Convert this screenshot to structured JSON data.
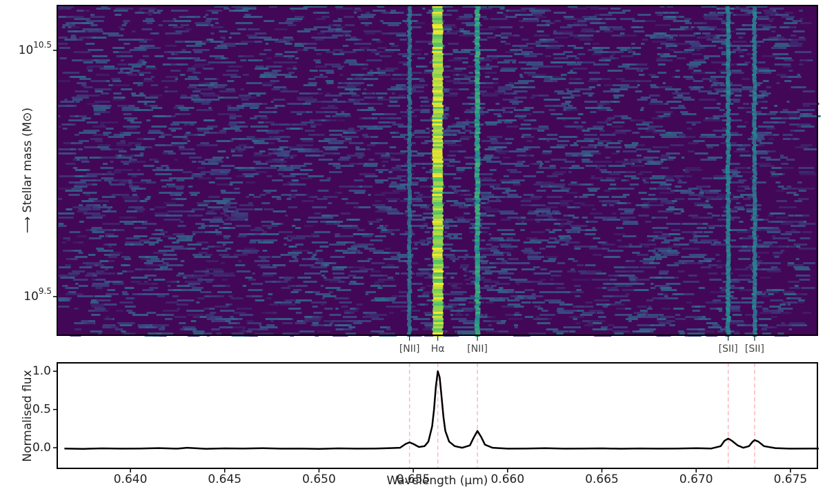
{
  "chart_data": [
    {
      "type": "heatmap",
      "y_label": "⟶ Stellar mass (M⊙)",
      "log_scale": true,
      "colormap": "viridis",
      "xlim": [
        0.63612,
        0.67643
      ],
      "ylim": [
        2203000000,
        48100000000
      ],
      "yticks": [
        {
          "value": 31622776602,
          "label": "10^10.5"
        },
        {
          "value": 3162277660,
          "label": "10^9.5"
        }
      ]
    },
    {
      "type": "line",
      "x_label": "Wavelength (μm)",
      "y_label": "Normalised flux",
      "color": "#000000",
      "xlim": [
        0.63612,
        0.67643
      ],
      "ylim": [
        -0.27,
        1.11
      ],
      "xticks": [
        {
          "value": 0.64,
          "label": "0.640"
        },
        {
          "value": 0.645,
          "label": "0.645"
        },
        {
          "value": 0.65,
          "label": "0.650"
        },
        {
          "value": 0.655,
          "label": "0.655"
        },
        {
          "value": 0.66,
          "label": "0.660"
        },
        {
          "value": 0.665,
          "label": "0.665"
        },
        {
          "value": 0.67,
          "label": "0.670"
        },
        {
          "value": 0.675,
          "label": "0.675"
        }
      ],
      "yticks": [
        {
          "value": 0,
          "label": "0.0"
        },
        0.5,
        {
          "value": 1,
          "label": "1.0"
        }
      ],
      "annotations": [
        {
          "text": "[NII]",
          "x": 0.6548
        },
        {
          "text": "Hα",
          "x": 0.6563
        },
        {
          "text": "[NII]",
          "x": 0.6584
        },
        {
          "text": "[SII]",
          "x": 0.6717
        },
        {
          "text": "[SII]",
          "x": 0.6731
        }
      ],
      "x": [
        0.6365,
        0.6375,
        0.6385,
        0.6395,
        0.6405,
        0.6415,
        0.6425,
        0.643,
        0.644,
        0.645,
        0.646,
        0.647,
        0.648,
        0.649,
        0.65,
        0.651,
        0.652,
        0.653,
        0.6538,
        0.6543,
        0.6546,
        0.6548,
        0.655,
        0.6553,
        0.6556,
        0.6558,
        0.656,
        0.6561,
        0.6562,
        0.6563,
        0.6564,
        0.6565,
        0.6566,
        0.6567,
        0.6569,
        0.6572,
        0.6576,
        0.658,
        0.6582,
        0.6584,
        0.6586,
        0.6588,
        0.6592,
        0.66,
        0.661,
        0.662,
        0.663,
        0.664,
        0.665,
        0.666,
        0.667,
        0.668,
        0.669,
        0.67,
        0.6708,
        0.6713,
        0.6715,
        0.6717,
        0.6719,
        0.6722,
        0.6725,
        0.6728,
        0.673,
        0.6731,
        0.6733,
        0.6736,
        0.6742,
        0.675,
        0.676,
        0.6765
      ],
      "values": [
        -0.01,
        -0.015,
        -0.008,
        -0.012,
        -0.01,
        -0.005,
        -0.012,
        0.0,
        -0.014,
        -0.008,
        -0.01,
        -0.006,
        -0.012,
        -0.01,
        -0.015,
        -0.008,
        -0.012,
        -0.01,
        -0.005,
        0.0,
        0.05,
        0.07,
        0.05,
        0.01,
        0.02,
        0.08,
        0.28,
        0.5,
        0.8,
        1.0,
        0.92,
        0.66,
        0.4,
        0.22,
        0.08,
        0.02,
        0.0,
        0.03,
        0.13,
        0.22,
        0.14,
        0.04,
        0.0,
        -0.012,
        -0.01,
        -0.006,
        -0.012,
        -0.01,
        -0.008,
        -0.013,
        -0.009,
        -0.012,
        -0.01,
        -0.006,
        -0.01,
        0.02,
        0.09,
        0.12,
        0.09,
        0.03,
        0.0,
        0.02,
        0.08,
        0.1,
        0.08,
        0.02,
        -0.005,
        -0.012,
        -0.01,
        -0.01
      ]
    }
  ]
}
